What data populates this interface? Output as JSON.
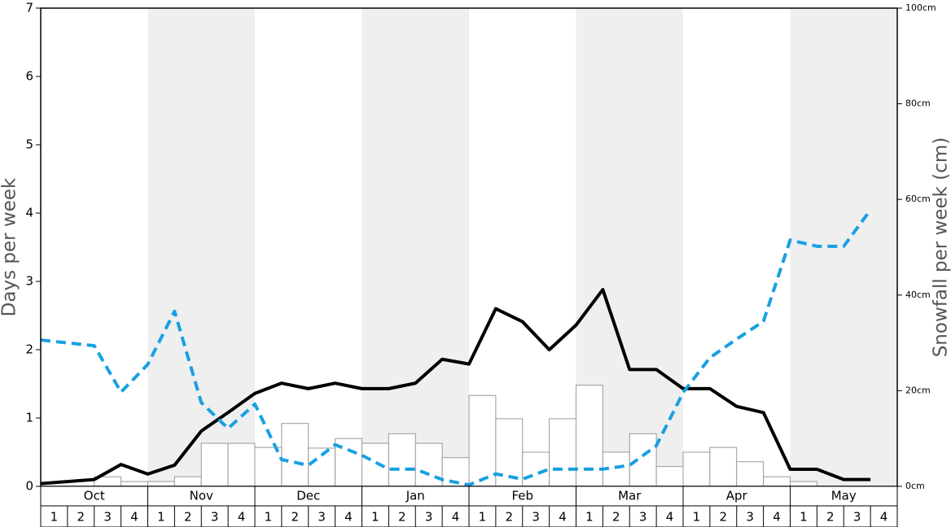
{
  "chart_data": {
    "type": "bar-line",
    "y_label": "Days per week",
    "y2_label": "Snowfall per week (cm)",
    "months": [
      "Oct",
      "Nov",
      "Dec",
      "Jan",
      "Feb",
      "Mar",
      "Apr",
      "May"
    ],
    "categories": [
      "1",
      "2",
      "3",
      "4",
      "1",
      "2",
      "3",
      "4",
      "1",
      "2",
      "3",
      "4",
      "1",
      "2",
      "3",
      "4",
      "1",
      "2",
      "3",
      "4",
      "1",
      "2",
      "3",
      "4",
      "1",
      "2",
      "3",
      "4",
      "1",
      "2",
      "3",
      "4"
    ],
    "ylim": [
      0,
      7
    ],
    "yticks": [
      0,
      1,
      2,
      3,
      4,
      5,
      6,
      7
    ],
    "y2lim": [
      0,
      100
    ],
    "y2ticks": [
      {
        "value": 0,
        "label": "0cm"
      },
      {
        "value": 20,
        "label": "20cm"
      },
      {
        "value": 40,
        "label": "40cm"
      },
      {
        "value": 60,
        "label": "60cm"
      },
      {
        "value": 80,
        "label": "80cm"
      },
      {
        "value": 100,
        "label": "100cm"
      }
    ],
    "shaded_months": true,
    "series": [
      {
        "kind": "bar",
        "color": "#ffffff",
        "border": "#999999",
        "values": [
          0,
          0,
          0.14,
          0.07,
          0.07,
          0.14,
          0.63,
          0.63,
          0.57,
          0.92,
          0.56,
          0.7,
          0.63,
          0.77,
          0.63,
          0.42,
          1.33,
          0.99,
          0.5,
          0.99,
          1.48,
          0.5,
          0.77,
          0.29,
          0.5,
          0.57,
          0.36,
          0.14,
          0.07,
          0,
          0,
          0
        ]
      },
      {
        "kind": "line",
        "color": "#000000",
        "values": [
          0.04,
          0.07,
          0.1,
          0.32,
          0.18,
          0.31,
          0.81,
          1.08,
          1.36,
          1.51,
          1.43,
          1.51,
          1.43,
          1.43,
          1.51,
          1.86,
          1.79,
          2.6,
          2.41,
          2.0,
          2.36,
          2.88,
          1.71,
          1.71,
          1.43,
          1.43,
          1.17,
          1.08,
          0.25,
          0.25,
          0.1,
          0.1
        ]
      },
      {
        "kind": "dashed-line",
        "color": "#18a0e2",
        "axis": "y2",
        "values": [
          30.6,
          30.0,
          29.4,
          19.7,
          25.5,
          36.6,
          17.5,
          12.1,
          17.2,
          5.6,
          4.4,
          8.7,
          6.5,
          3.6,
          3.6,
          1.4,
          0.3,
          2.6,
          1.5,
          3.6,
          3.6,
          3.6,
          4.4,
          8.5,
          19.6,
          26.9,
          30.8,
          34.5,
          51.5,
          50.2,
          50.2,
          57.8
        ]
      }
    ]
  }
}
